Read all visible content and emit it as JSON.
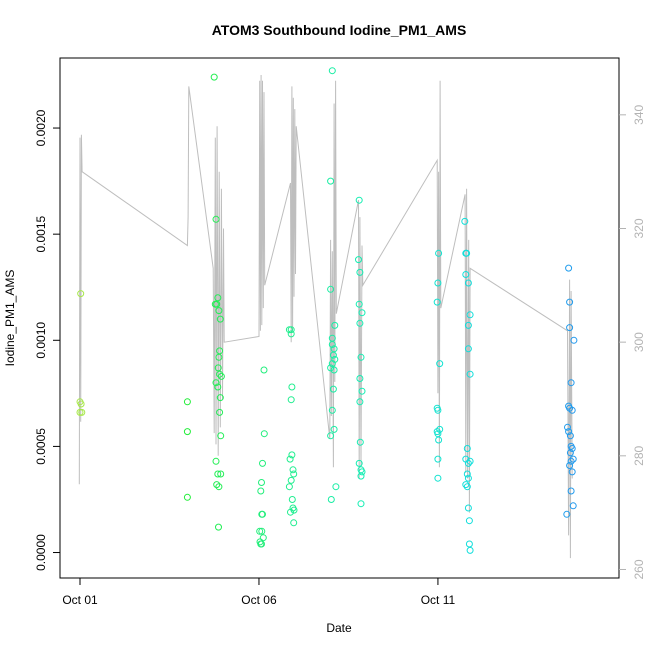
{
  "chart_data": {
    "type": "scatter",
    "title": "ATOM3 Southbound Iodine_PM1_AMS",
    "xlabel": "Date",
    "ylabel": "Iodine_PM1_AMS",
    "x_ticks": [
      {
        "value": 1,
        "label": "Oct 01"
      },
      {
        "value": 6,
        "label": "Oct 06"
      },
      {
        "value": 11,
        "label": "Oct 11"
      }
    ],
    "xlim": [
      1,
      15.5
    ],
    "y_ticks": [
      "0.0000",
      "0.0005",
      "0.0010",
      "0.0015",
      "0.0020"
    ],
    "ylim": [
      -0.00012,
      0.00233
    ],
    "y2_ticks": [
      "260",
      "280",
      "300",
      "320",
      "340"
    ],
    "y2lim": [
      258.5,
      350
    ],
    "colors": {
      "frame": "#000000",
      "secondary_axis": "#b3b3b3",
      "secondary_line": "#bebebe",
      "point_gradient": [
        "#a8e84a",
        "#22ee33",
        "#22ee88",
        "#11eebb",
        "#11dddd",
        "#2299ee"
      ]
    },
    "points": [
      {
        "x": 1.02,
        "y": 0.00122
      },
      {
        "x": 1.0,
        "y": 0.00071
      },
      {
        "x": 1.03,
        "y": 0.0007
      },
      {
        "x": 1.0,
        "y": 0.00066
      },
      {
        "x": 1.05,
        "y": 0.00066
      },
      {
        "x": 4.0,
        "y": 0.00071
      },
      {
        "x": 4.0,
        "y": 0.00057
      },
      {
        "x": 4.0,
        "y": 0.00026
      },
      {
        "x": 4.75,
        "y": 0.00224
      },
      {
        "x": 4.8,
        "y": 0.00157
      },
      {
        "x": 4.78,
        "y": 0.00117
      },
      {
        "x": 4.85,
        "y": 0.0012
      },
      {
        "x": 4.88,
        "y": 0.00114
      },
      {
        "x": 4.82,
        "y": 0.00117
      },
      {
        "x": 4.92,
        "y": 0.0011
      },
      {
        "x": 4.9,
        "y": 0.00095
      },
      {
        "x": 4.88,
        "y": 0.00092
      },
      {
        "x": 4.86,
        "y": 0.00087
      },
      {
        "x": 4.9,
        "y": 0.00084
      },
      {
        "x": 4.95,
        "y": 0.00083
      },
      {
        "x": 4.8,
        "y": 0.0008
      },
      {
        "x": 4.85,
        "y": 0.00078
      },
      {
        "x": 4.92,
        "y": 0.00073
      },
      {
        "x": 4.9,
        "y": 0.00066
      },
      {
        "x": 4.93,
        "y": 0.00055
      },
      {
        "x": 4.8,
        "y": 0.00043
      },
      {
        "x": 4.85,
        "y": 0.00037
      },
      {
        "x": 4.93,
        "y": 0.00037
      },
      {
        "x": 4.82,
        "y": 0.00032
      },
      {
        "x": 4.88,
        "y": 0.00031
      },
      {
        "x": 4.87,
        "y": 0.00012
      },
      {
        "x": 6.14,
        "y": 0.00086
      },
      {
        "x": 6.15,
        "y": 0.00056
      },
      {
        "x": 6.1,
        "y": 0.00042
      },
      {
        "x": 6.07,
        "y": 0.00033
      },
      {
        "x": 6.05,
        "y": 0.00029
      },
      {
        "x": 6.08,
        "y": 0.00018
      },
      {
        "x": 6.1,
        "y": 0.00018
      },
      {
        "x": 6.02,
        "y": 0.0001
      },
      {
        "x": 6.08,
        "y": 0.0001
      },
      {
        "x": 6.12,
        "y": 7e-05
      },
      {
        "x": 6.03,
        "y": 5e-05
      },
      {
        "x": 6.05,
        "y": 4e-05
      },
      {
        "x": 6.07,
        "y": 4e-05
      },
      {
        "x": 6.85,
        "y": 0.00105
      },
      {
        "x": 6.9,
        "y": 0.00105
      },
      {
        "x": 6.9,
        "y": 0.00103
      },
      {
        "x": 6.92,
        "y": 0.00078
      },
      {
        "x": 6.9,
        "y": 0.00072
      },
      {
        "x": 6.92,
        "y": 0.00046
      },
      {
        "x": 6.87,
        "y": 0.00044
      },
      {
        "x": 6.95,
        "y": 0.00039
      },
      {
        "x": 6.97,
        "y": 0.00037
      },
      {
        "x": 6.9,
        "y": 0.00034
      },
      {
        "x": 6.85,
        "y": 0.00031
      },
      {
        "x": 6.93,
        "y": 0.00025
      },
      {
        "x": 6.95,
        "y": 0.00021
      },
      {
        "x": 6.98,
        "y": 0.0002
      },
      {
        "x": 6.88,
        "y": 0.00019
      },
      {
        "x": 6.97,
        "y": 0.00014
      },
      {
        "x": 8.05,
        "y": 0.00227
      },
      {
        "x": 8.0,
        "y": 0.00175
      },
      {
        "x": 8.0,
        "y": 0.00124
      },
      {
        "x": 8.12,
        "y": 0.00107
      },
      {
        "x": 8.05,
        "y": 0.00101
      },
      {
        "x": 8.05,
        "y": 0.00098
      },
      {
        "x": 8.1,
        "y": 0.00096
      },
      {
        "x": 8.08,
        "y": 0.00093
      },
      {
        "x": 8.12,
        "y": 0.00091
      },
      {
        "x": 8.05,
        "y": 0.00089
      },
      {
        "x": 8.0,
        "y": 0.00087
      },
      {
        "x": 8.1,
        "y": 0.00086
      },
      {
        "x": 8.08,
        "y": 0.00077
      },
      {
        "x": 8.05,
        "y": 0.00067
      },
      {
        "x": 8.1,
        "y": 0.00058
      },
      {
        "x": 8.0,
        "y": 0.00055
      },
      {
        "x": 8.15,
        "y": 0.00031
      },
      {
        "x": 8.02,
        "y": 0.00025
      },
      {
        "x": 8.8,
        "y": 0.00166
      },
      {
        "x": 8.78,
        "y": 0.00138
      },
      {
        "x": 8.82,
        "y": 0.00132
      },
      {
        "x": 8.8,
        "y": 0.00117
      },
      {
        "x": 8.88,
        "y": 0.00113
      },
      {
        "x": 8.82,
        "y": 0.00108
      },
      {
        "x": 8.85,
        "y": 0.00092
      },
      {
        "x": 8.82,
        "y": 0.00082
      },
      {
        "x": 8.88,
        "y": 0.00076
      },
      {
        "x": 8.82,
        "y": 0.00071
      },
      {
        "x": 8.83,
        "y": 0.00052
      },
      {
        "x": 8.8,
        "y": 0.00042
      },
      {
        "x": 8.85,
        "y": 0.00039
      },
      {
        "x": 8.88,
        "y": 0.00038
      },
      {
        "x": 8.85,
        "y": 0.00036
      },
      {
        "x": 8.85,
        "y": 0.00023
      },
      {
        "x": 11.02,
        "y": 0.00141
      },
      {
        "x": 11.0,
        "y": 0.00127
      },
      {
        "x": 10.98,
        "y": 0.00118
      },
      {
        "x": 11.05,
        "y": 0.00089
      },
      {
        "x": 10.98,
        "y": 0.00068
      },
      {
        "x": 11.0,
        "y": 0.00067
      },
      {
        "x": 11.05,
        "y": 0.00058
      },
      {
        "x": 10.98,
        "y": 0.00057
      },
      {
        "x": 11.0,
        "y": 0.00056
      },
      {
        "x": 11.02,
        "y": 0.00053
      },
      {
        "x": 11.0,
        "y": 0.00044
      },
      {
        "x": 11.0,
        "y": 0.00035
      },
      {
        "x": 11.75,
        "y": 0.00156
      },
      {
        "x": 11.78,
        "y": 0.00141
      },
      {
        "x": 11.8,
        "y": 0.00141
      },
      {
        "x": 11.78,
        "y": 0.00131
      },
      {
        "x": 11.85,
        "y": 0.00127
      },
      {
        "x": 11.9,
        "y": 0.00112
      },
      {
        "x": 11.85,
        "y": 0.00107
      },
      {
        "x": 11.85,
        "y": 0.00096
      },
      {
        "x": 11.9,
        "y": 0.00084
      },
      {
        "x": 11.82,
        "y": 0.00049
      },
      {
        "x": 11.9,
        "y": 0.00043
      },
      {
        "x": 11.78,
        "y": 0.00044
      },
      {
        "x": 11.85,
        "y": 0.00042
      },
      {
        "x": 11.82,
        "y": 0.00037
      },
      {
        "x": 11.85,
        "y": 0.00035
      },
      {
        "x": 11.78,
        "y": 0.00032
      },
      {
        "x": 11.82,
        "y": 0.00031
      },
      {
        "x": 11.85,
        "y": 0.00021
      },
      {
        "x": 11.88,
        "y": 0.00015
      },
      {
        "x": 11.88,
        "y": 4e-05
      },
      {
        "x": 11.9,
        "y": 1e-05
      },
      {
        "x": 14.65,
        "y": 0.00134
      },
      {
        "x": 14.68,
        "y": 0.00118
      },
      {
        "x": 14.68,
        "y": 0.00106
      },
      {
        "x": 14.8,
        "y": 0.001
      },
      {
        "x": 14.72,
        "y": 0.0008
      },
      {
        "x": 14.65,
        "y": 0.00069
      },
      {
        "x": 14.68,
        "y": 0.00068
      },
      {
        "x": 14.75,
        "y": 0.00067
      },
      {
        "x": 14.62,
        "y": 0.00059
      },
      {
        "x": 14.65,
        "y": 0.00057
      },
      {
        "x": 14.7,
        "y": 0.00055
      },
      {
        "x": 14.72,
        "y": 0.0005
      },
      {
        "x": 14.75,
        "y": 0.00049
      },
      {
        "x": 14.7,
        "y": 0.00047
      },
      {
        "x": 14.78,
        "y": 0.00044
      },
      {
        "x": 14.72,
        "y": 0.00043
      },
      {
        "x": 14.68,
        "y": 0.00041
      },
      {
        "x": 14.75,
        "y": 0.00038
      },
      {
        "x": 14.72,
        "y": 0.00029
      },
      {
        "x": 14.78,
        "y": 0.00022
      },
      {
        "x": 14.6,
        "y": 0.00018
      }
    ],
    "secondary_series": [
      {
        "x": 0.98,
        "y": 275
      },
      {
        "x": 1.0,
        "y": 336
      },
      {
        "x": 1.02,
        "y": 286
      },
      {
        "x": 1.04,
        "y": 336.5
      },
      {
        "x": 1.06,
        "y": 330
      },
      {
        "x": 4.0,
        "y": 317
      },
      {
        "x": 4.02,
        "y": 322
      },
      {
        "x": 4.04,
        "y": 345
      },
      {
        "x": 4.72,
        "y": 313
      },
      {
        "x": 4.75,
        "y": 284
      },
      {
        "x": 4.78,
        "y": 336
      },
      {
        "x": 4.8,
        "y": 282
      },
      {
        "x": 4.83,
        "y": 338
      },
      {
        "x": 4.86,
        "y": 280
      },
      {
        "x": 4.89,
        "y": 330
      },
      {
        "x": 4.92,
        "y": 285
      },
      {
        "x": 4.95,
        "y": 327
      },
      {
        "x": 4.98,
        "y": 290
      },
      {
        "x": 5.01,
        "y": 320
      },
      {
        "x": 5.03,
        "y": 300
      },
      {
        "x": 6.0,
        "y": 301
      },
      {
        "x": 6.02,
        "y": 346
      },
      {
        "x": 6.04,
        "y": 302
      },
      {
        "x": 6.06,
        "y": 347
      },
      {
        "x": 6.08,
        "y": 303
      },
      {
        "x": 6.1,
        "y": 346
      },
      {
        "x": 6.12,
        "y": 306
      },
      {
        "x": 6.14,
        "y": 344
      },
      {
        "x": 6.16,
        "y": 310
      },
      {
        "x": 6.88,
        "y": 328
      },
      {
        "x": 6.9,
        "y": 300
      },
      {
        "x": 6.92,
        "y": 345
      },
      {
        "x": 6.94,
        "y": 302
      },
      {
        "x": 6.96,
        "y": 343
      },
      {
        "x": 6.98,
        "y": 308
      },
      {
        "x": 7.0,
        "y": 341
      },
      {
        "x": 7.02,
        "y": 312
      },
      {
        "x": 7.04,
        "y": 338
      },
      {
        "x": 7.98,
        "y": 283
      },
      {
        "x": 8.0,
        "y": 318
      },
      {
        "x": 8.02,
        "y": 287
      },
      {
        "x": 8.05,
        "y": 316
      },
      {
        "x": 8.08,
        "y": 278
      },
      {
        "x": 8.1,
        "y": 342
      },
      {
        "x": 8.12,
        "y": 293
      },
      {
        "x": 8.14,
        "y": 346
      },
      {
        "x": 8.16,
        "y": 305
      },
      {
        "x": 8.78,
        "y": 325
      },
      {
        "x": 8.8,
        "y": 276
      },
      {
        "x": 8.82,
        "y": 322
      },
      {
        "x": 8.85,
        "y": 278
      },
      {
        "x": 8.88,
        "y": 317
      },
      {
        "x": 8.9,
        "y": 310
      },
      {
        "x": 10.98,
        "y": 332
      },
      {
        "x": 11.0,
        "y": 291
      },
      {
        "x": 11.02,
        "y": 330
      },
      {
        "x": 11.04,
        "y": 278
      },
      {
        "x": 11.06,
        "y": 346
      },
      {
        "x": 11.08,
        "y": 306
      },
      {
        "x": 11.76,
        "y": 326
      },
      {
        "x": 11.78,
        "y": 277
      },
      {
        "x": 11.8,
        "y": 327
      },
      {
        "x": 11.83,
        "y": 276
      },
      {
        "x": 11.86,
        "y": 318
      },
      {
        "x": 11.88,
        "y": 270
      },
      {
        "x": 11.9,
        "y": 313
      },
      {
        "x": 14.62,
        "y": 302
      },
      {
        "x": 14.65,
        "y": 266
      },
      {
        "x": 14.68,
        "y": 311
      },
      {
        "x": 14.7,
        "y": 262
      },
      {
        "x": 14.72,
        "y": 309
      },
      {
        "x": 14.75,
        "y": 276
      }
    ]
  }
}
